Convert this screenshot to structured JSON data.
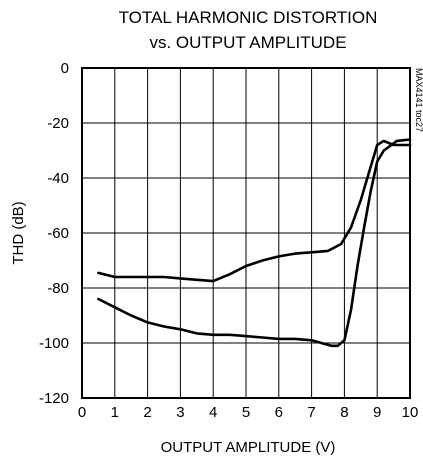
{
  "chart_data": {
    "type": "line",
    "title_lines": [
      "TOTAL HARMONIC DISTORTION",
      "vs. OUTPUT AMPLITUDE"
    ],
    "xlabel": "OUTPUT AMPLITUDE (V)",
    "ylabel": "THD (dB)",
    "side_note": "MAX4141 toc27",
    "xlim": [
      0,
      10
    ],
    "ylim": [
      -120,
      0
    ],
    "x_ticks": [
      "0",
      "1",
      "2",
      "3",
      "4",
      "5",
      "6",
      "7",
      "8",
      "9",
      "10"
    ],
    "y_ticks": [
      "0",
      "-20",
      "-40",
      "-60",
      "-80",
      "-100",
      "-120"
    ],
    "grid": true,
    "series": [
      {
        "x": [
          0.5,
          1,
          1.5,
          2,
          2.5,
          3,
          3.5,
          4,
          4.5,
          5,
          5.5,
          6,
          6.5,
          7,
          7.5,
          7.9,
          8.2,
          8.5,
          8.8,
          9.0,
          9.2,
          9.5,
          10
        ],
        "y": [
          -74.5,
          -76,
          -76,
          -76,
          -76,
          -76.5,
          -77,
          -77.5,
          -75,
          -72,
          -70,
          -68.5,
          -67.5,
          -67,
          -66.5,
          -64,
          -58,
          -48,
          -36,
          -28,
          -26.5,
          -28,
          -28
        ]
      },
      {
        "x": [
          0.5,
          1,
          1.5,
          2,
          2.5,
          3,
          3.5,
          4,
          4.5,
          5,
          5.5,
          6,
          6.5,
          7,
          7.3,
          7.6,
          7.8,
          8.0,
          8.2,
          8.4,
          8.6,
          8.8,
          9.0,
          9.2,
          9.6,
          10
        ],
        "y": [
          -84,
          -87,
          -90,
          -92.5,
          -94,
          -95,
          -96.5,
          -97,
          -97,
          -97.5,
          -98,
          -98.5,
          -98.5,
          -99,
          -100,
          -101,
          -101,
          -99,
          -88,
          -72,
          -58,
          -45,
          -34,
          -30,
          -26.5,
          -26
        ]
      }
    ]
  }
}
